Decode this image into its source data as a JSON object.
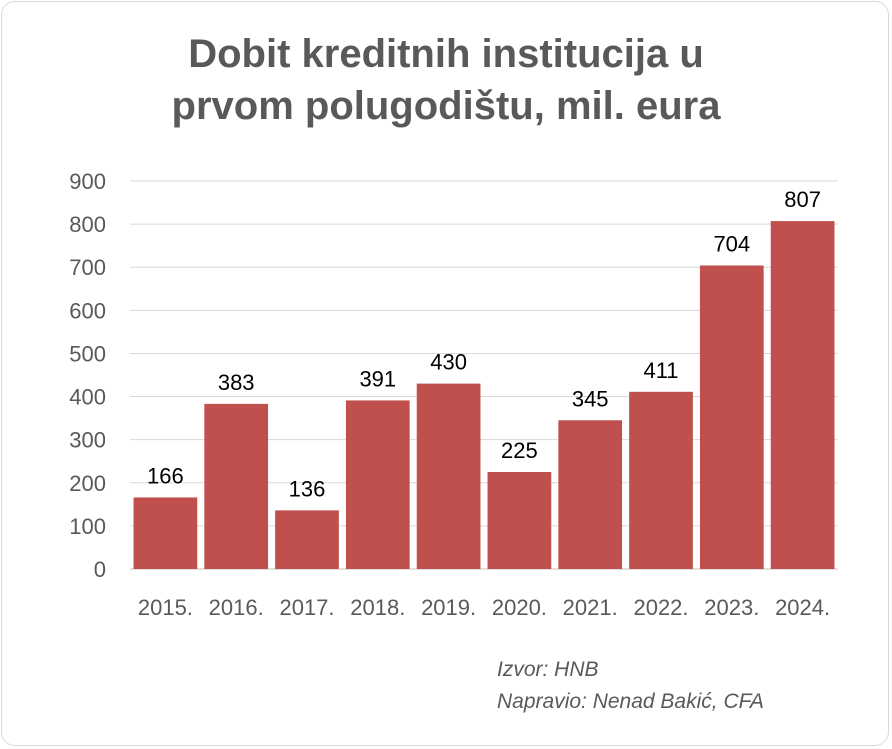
{
  "chart_data": {
    "type": "bar",
    "title_lines": [
      "Dobit kreditnih institucija u",
      "prvom polugodištu, mil. eura"
    ],
    "categories": [
      "2015.",
      "2016.",
      "2017.",
      "2018.",
      "2019.",
      "2020.",
      "2021.",
      "2022.",
      "2023.",
      "2024."
    ],
    "series": [
      {
        "values": [
          166,
          383,
          136,
          391,
          430,
          225,
          345,
          411,
          704,
          807
        ]
      }
    ],
    "ylim": [
      0,
      900
    ],
    "yticks": [
      0,
      100,
      200,
      300,
      400,
      500,
      600,
      700,
      800,
      900
    ],
    "grid": true,
    "legend": "none",
    "data_labels": true,
    "bar_color": "#c0504d"
  },
  "source": {
    "line1": "Izvor: HNB",
    "line2": "Napravio: Nenad Bakić, CFA"
  }
}
